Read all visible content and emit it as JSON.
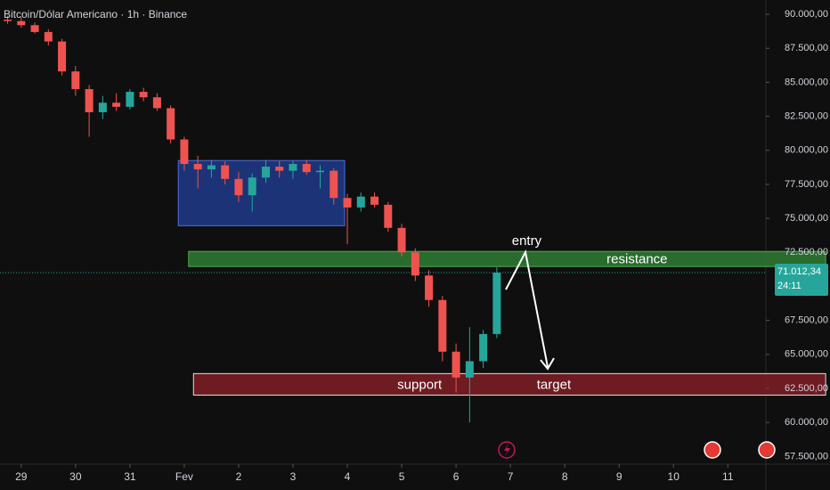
{
  "chart_data": {
    "type": "candlestick",
    "title": "Bitcoin/Dólar Americano · 1h · Binance",
    "x": [
      -0.25,
      0,
      0.25,
      0.5,
      0.75,
      1,
      1.25,
      1.5,
      1.75,
      2,
      2.25,
      2.5,
      2.75,
      3,
      3.25,
      3.5,
      3.75,
      4,
      4.25,
      4.5,
      4.75,
      5,
      5.25,
      5.5,
      5.75,
      6,
      6.25,
      6.5,
      6.75,
      7,
      7.25,
      7.5,
      7.75,
      8,
      8.25,
      8.5,
      8.75
    ],
    "open": [
      89600,
      89500,
      89200,
      88700,
      88000,
      85800,
      84500,
      82800,
      83500,
      83200,
      84300,
      83900,
      83100,
      80800,
      79000,
      78600,
      78900,
      77900,
      76700,
      78000,
      78800,
      78500,
      79000,
      78400,
      78500,
      76500,
      75800,
      76600,
      76000,
      74300,
      72500,
      70800,
      69000,
      65200,
      63300,
      64500,
      66500
    ],
    "high": [
      89900,
      89800,
      89400,
      88900,
      88200,
      86200,
      84800,
      84000,
      84200,
      84500,
      84600,
      84200,
      83300,
      81000,
      79600,
      79300,
      79200,
      78400,
      78300,
      79300,
      79200,
      79200,
      79300,
      78900,
      78700,
      76800,
      76900,
      76900,
      76200,
      74600,
      72800,
      71200,
      69300,
      65800,
      67000,
      66800,
      71400
    ],
    "low": [
      89300,
      89000,
      88600,
      87700,
      85500,
      84000,
      81000,
      82300,
      82900,
      83000,
      83600,
      82900,
      80500,
      78500,
      77200,
      78000,
      77500,
      76200,
      75500,
      77600,
      78000,
      77900,
      78200,
      77200,
      76000,
      73100,
      75500,
      75800,
      74000,
      72200,
      70400,
      68500,
      64500,
      62200,
      60000,
      64000,
      66200
    ],
    "close": [
      89500,
      89200,
      88700,
      88000,
      85800,
      84500,
      82800,
      83500,
      83200,
      84300,
      83900,
      83100,
      80800,
      79000,
      78600,
      78900,
      77900,
      76700,
      78000,
      78800,
      78500,
      79000,
      78400,
      78500,
      76500,
      75800,
      76600,
      76000,
      74300,
      72500,
      70800,
      69000,
      65200,
      63300,
      64500,
      66500,
      71012.34
    ],
    "up_color": "#26a69a",
    "down_color": "#ef5350",
    "xlim": [
      -0.39,
      13.7
    ],
    "xticks": [
      {
        "value": 0,
        "label": "29"
      },
      {
        "value": 1,
        "label": "30"
      },
      {
        "value": 2,
        "label": "31"
      },
      {
        "value": 3,
        "label": "Fev"
      },
      {
        "value": 4,
        "label": "2"
      },
      {
        "value": 5,
        "label": "3"
      },
      {
        "value": 6,
        "label": "4"
      },
      {
        "value": 7,
        "label": "5"
      },
      {
        "value": 8,
        "label": "6"
      },
      {
        "value": 9,
        "label": "7"
      },
      {
        "value": 10,
        "label": "8"
      },
      {
        "value": 11,
        "label": "9"
      },
      {
        "value": 12,
        "label": "10"
      },
      {
        "value": 13,
        "label": "11"
      }
    ],
    "ylim": [
      57000,
      91050
    ],
    "yticks": [
      {
        "value": 90000,
        "label": "90.000,00"
      },
      {
        "value": 87500,
        "label": "87.500,00"
      },
      {
        "value": 85000,
        "label": "85.000,00"
      },
      {
        "value": 82500,
        "label": "82.500,00"
      },
      {
        "value": 80000,
        "label": "80.000,00"
      },
      {
        "value": 77500,
        "label": "77.500,00"
      },
      {
        "value": 75000,
        "label": "75.000,00"
      },
      {
        "value": 72500,
        "label": "72.500,00"
      },
      {
        "value": 67500,
        "label": "67.500,00"
      },
      {
        "value": 65000,
        "label": "65.000,00"
      },
      {
        "value": 62500,
        "label": "62.500,00"
      },
      {
        "value": 60000,
        "label": "60.000,00"
      },
      {
        "value": 57500,
        "label": "57.500,00"
      }
    ],
    "last_price": {
      "value": 71012.34,
      "label": "71.012,34",
      "countdown": "24:11"
    },
    "zones": [
      {
        "x0": 2.89,
        "x1": 5.95,
        "low": 74460,
        "high": 79250,
        "color": "#1e3a8a",
        "border": "#4f6fe0",
        "labels": []
      },
      {
        "x0": 3.08,
        "x1": 14.8,
        "low": 71460,
        "high": 72570,
        "color": "#2e7d32",
        "border": "#4caf50",
        "labels": [
          {
            "text": "resistance",
            "x": 11.33
          }
        ]
      },
      {
        "x0": 3.17,
        "x1": 14.8,
        "low": 62010,
        "high": 63590,
        "color": "#7f1d25",
        "border": "#e0e0e0",
        "labels": [
          {
            "text": "support",
            "x": 7.33
          },
          {
            "text": "target",
            "x": 9.8
          }
        ]
      }
    ],
    "annotations": [
      {
        "text": "entry",
        "x": 9.3,
        "y": 73290
      }
    ]
  }
}
